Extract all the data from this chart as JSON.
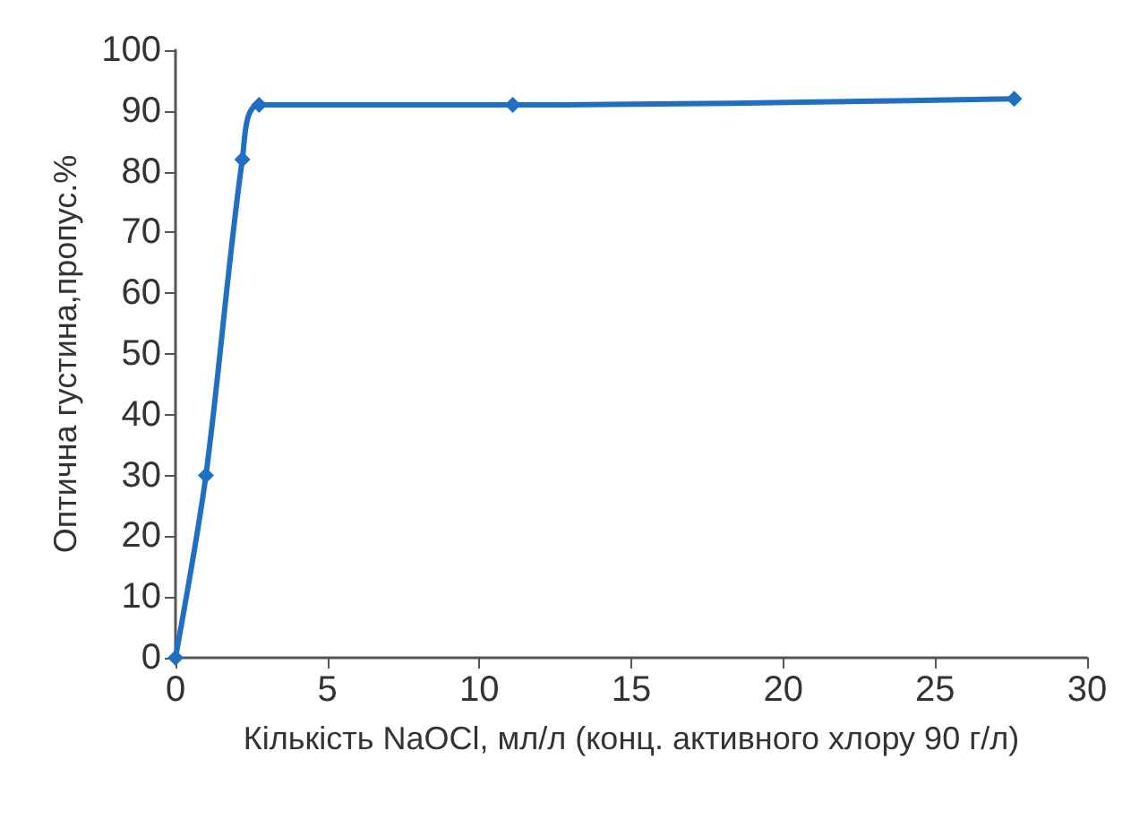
{
  "chart_data": {
    "type": "line",
    "xlabel": "Кількість NaOCl, мл/л (конц. активного хлору 90 г/л)",
    "ylabel": "Оптична густина,пропус.%",
    "x": [
      0,
      1,
      2.2,
      2.75,
      11.1,
      27.6
    ],
    "series": [
      {
        "color": "#1f6fc4",
        "values": [
          0,
          30,
          82,
          91,
          91,
          92
        ]
      }
    ],
    "xlim": [
      0,
      30
    ],
    "xticks": [
      0,
      5,
      10,
      15,
      20,
      25,
      30
    ],
    "ylim": [
      0,
      100
    ],
    "yticks": [
      0,
      10,
      20,
      30,
      40,
      50,
      60,
      70,
      80,
      90,
      100
    ],
    "grid": false,
    "marker": "diamond",
    "line_style": "solid"
  }
}
